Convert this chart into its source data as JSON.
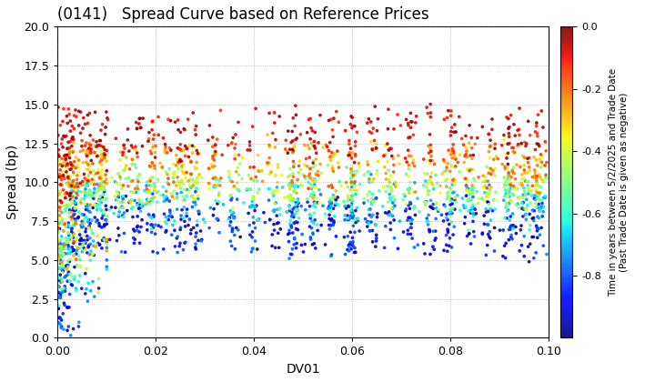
{
  "title": "(0141)   Spread Curve based on Reference Prices",
  "xlabel": "DV01",
  "ylabel": "Spread (bp)",
  "xlim": [
    0.0,
    0.1
  ],
  "ylim": [
    0.0,
    20.0
  ],
  "yticks": [
    0.0,
    2.5,
    5.0,
    7.5,
    10.0,
    12.5,
    15.0,
    17.5,
    20.0
  ],
  "xticks": [
    0.0,
    0.02,
    0.04,
    0.06,
    0.08,
    0.1
  ],
  "colorbar_label": "Time in years between 5/2/2025 and Trade Date\n(Past Trade Date is given as negative)",
  "colorbar_ticks": [
    0.0,
    -0.2,
    -0.4,
    -0.6,
    -0.8
  ],
  "cmap": "jet",
  "background_color": "#ffffff",
  "title_fontsize": 12,
  "axis_fontsize": 10,
  "seed": 42
}
